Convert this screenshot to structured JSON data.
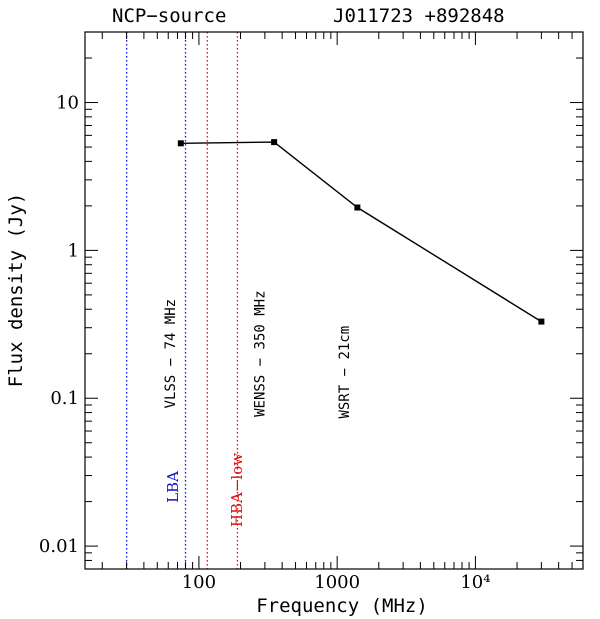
{
  "chart_data": {
    "type": "line",
    "title_left": "NCP−source",
    "title_right": "J011723 +892848",
    "xlabel": "Frequency (MHz)",
    "ylabel": "Flux density (Jy)",
    "x_scale": "log",
    "y_scale": "log",
    "xlim": [
      15,
      60000
    ],
    "ylim": [
      0.007,
      30
    ],
    "x_ticks": [
      {
        "value": 100,
        "label": "100"
      },
      {
        "value": 1000,
        "label": "1000"
      },
      {
        "value": 10000,
        "label": "10⁴"
      }
    ],
    "y_ticks": [
      {
        "value": 0.01,
        "label": "0.01"
      },
      {
        "value": 0.1,
        "label": "0.1"
      },
      {
        "value": 1,
        "label": "1"
      },
      {
        "value": 10,
        "label": "10"
      }
    ],
    "series": [
      {
        "x": [
          74,
          350,
          1400,
          30000
        ],
        "y": [
          5.3,
          5.4,
          1.95,
          0.33
        ]
      }
    ],
    "bands": [
      {
        "label": "LBA",
        "color": "#1010d0",
        "lines": [
          30,
          80
        ]
      },
      {
        "label": "HBA−low",
        "color": "#e01010",
        "lines": [
          115,
          190
        ]
      }
    ],
    "annotations": [
      {
        "text": "VLSS − 74 MHz",
        "x": 74,
        "y_center": 0.2
      },
      {
        "text": "WENSS − 350 MHz",
        "x": 330,
        "y_center": 0.2
      },
      {
        "text": "WSRT − 21cm",
        "x": 1300,
        "y_center": 0.15
      }
    ],
    "grid": false,
    "legend": "none"
  }
}
